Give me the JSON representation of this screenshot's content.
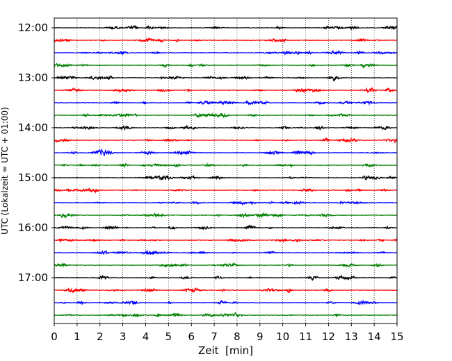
{
  "chart_data": {
    "type": "line",
    "title": "",
    "xlabel": "Zeit  [min]",
    "ylabel": "UTC (Lokalzeit = UTC + 01:00)",
    "xlim": [
      0,
      15
    ],
    "x_ticks": [
      0,
      1,
      2,
      3,
      4,
      5,
      6,
      7,
      8,
      9,
      10,
      11,
      12,
      13,
      14,
      15
    ],
    "y_tick_labels": [
      "12:00",
      "13:00",
      "14:00",
      "15:00",
      "16:00",
      "17:00"
    ],
    "trace_interval_minutes": 15,
    "trace_start": "12:00",
    "trace_count": 24,
    "color_cycle": [
      "#000000",
      "#ff0000",
      "#0000ff",
      "#008000"
    ],
    "grid": "vertical dotted",
    "traces": [
      {
        "start": "12:00"
      },
      {
        "start": "12:15"
      },
      {
        "start": "12:30"
      },
      {
        "start": "12:45"
      },
      {
        "start": "13:00"
      },
      {
        "start": "13:15"
      },
      {
        "start": "13:30"
      },
      {
        "start": "13:45"
      },
      {
        "start": "14:00"
      },
      {
        "start": "14:15"
      },
      {
        "start": "14:30"
      },
      {
        "start": "14:45"
      },
      {
        "start": "15:00"
      },
      {
        "start": "15:15"
      },
      {
        "start": "15:30"
      },
      {
        "start": "15:45"
      },
      {
        "start": "16:00"
      },
      {
        "start": "16:15"
      },
      {
        "start": "16:30"
      },
      {
        "start": "16:45"
      },
      {
        "start": "17:00"
      },
      {
        "start": "17:15"
      },
      {
        "start": "17:30"
      },
      {
        "start": "17:45"
      }
    ]
  }
}
